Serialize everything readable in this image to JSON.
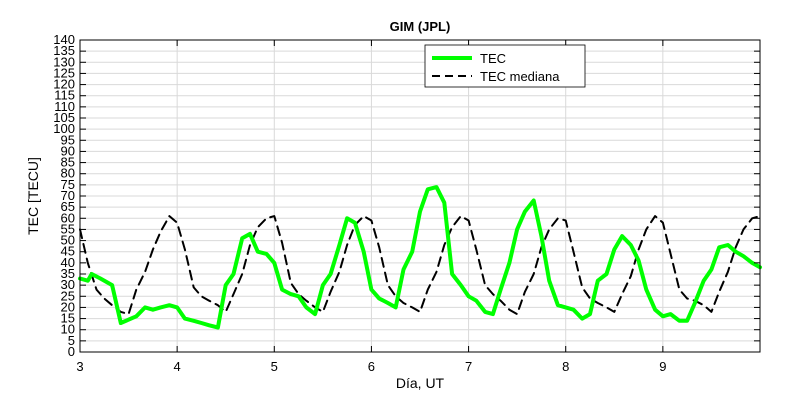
{
  "chart_data": {
    "type": "line",
    "title": "GIM (JPL)",
    "xlabel": "Día, UT",
    "ylabel": "TEC [TECU]",
    "xlim": [
      3,
      10
    ],
    "ylim": [
      0,
      140
    ],
    "xticks": [
      3,
      4,
      5,
      6,
      7,
      8,
      9
    ],
    "yticks": [
      0,
      5,
      10,
      15,
      20,
      25,
      30,
      35,
      40,
      45,
      50,
      55,
      60,
      65,
      70,
      75,
      80,
      85,
      90,
      95,
      100,
      105,
      110,
      115,
      120,
      125,
      130,
      135,
      140
    ],
    "grid": true,
    "legend_position": "top-right",
    "series": [
      {
        "name": "TEC",
        "color": "#00ff00",
        "style": "solid",
        "x": [
          3.0,
          3.08,
          3.12,
          3.21,
          3.33,
          3.42,
          3.58,
          3.67,
          3.75,
          3.83,
          3.92,
          4.0,
          4.08,
          4.17,
          4.25,
          4.33,
          4.42,
          4.5,
          4.58,
          4.67,
          4.75,
          4.83,
          4.92,
          5.0,
          5.08,
          5.17,
          5.25,
          5.33,
          5.42,
          5.5,
          5.58,
          5.67,
          5.75,
          5.83,
          5.92,
          6.0,
          6.08,
          6.17,
          6.25,
          6.33,
          6.42,
          6.5,
          6.58,
          6.67,
          6.75,
          6.83,
          6.92,
          7.0,
          7.08,
          7.17,
          7.25,
          7.33,
          7.42,
          7.5,
          7.58,
          7.67,
          7.75,
          7.83,
          7.92,
          8.0,
          8.08,
          8.17,
          8.25,
          8.33,
          8.42,
          8.5,
          8.58,
          8.67,
          8.75,
          8.83,
          8.92,
          9.0,
          9.08,
          9.17,
          9.25,
          9.33,
          9.42,
          9.5,
          9.58,
          9.67,
          9.75,
          9.83,
          9.92,
          10.0
        ],
        "values": [
          33,
          32,
          35,
          33,
          30,
          13,
          16,
          20,
          19,
          20,
          21,
          20,
          15,
          14,
          13,
          12,
          11,
          30,
          35,
          51,
          53,
          45,
          44,
          40,
          28,
          26,
          25,
          20,
          17,
          30,
          35,
          48,
          60,
          58,
          45,
          28,
          24,
          22,
          20,
          37,
          45,
          63,
          73,
          74,
          67,
          35,
          30,
          25,
          23,
          18,
          17,
          28,
          40,
          55,
          63,
          68,
          52,
          32,
          21,
          20,
          19,
          15,
          17,
          32,
          35,
          46,
          52,
          48,
          41,
          28,
          19,
          16,
          17,
          14,
          14,
          22,
          32,
          37,
          47,
          48,
          45,
          43,
          40,
          38
        ],
        "values_note": ""
      },
      {
        "name": "TEC mediana",
        "color": "#000000",
        "style": "dashed",
        "x": [
          3.0,
          3.08,
          3.17,
          3.25,
          3.33,
          3.42,
          3.5,
          3.58,
          3.67,
          3.75,
          3.83,
          3.92,
          4.0,
          4.08,
          4.17,
          4.25,
          4.33,
          4.42,
          4.5,
          4.58,
          4.67,
          4.75,
          4.83,
          4.92,
          5.0,
          5.08,
          5.17,
          5.25,
          5.33,
          5.42,
          5.5,
          5.58,
          5.67,
          5.75,
          5.83,
          5.92,
          6.0,
          6.08,
          6.17,
          6.25,
          6.33,
          6.42,
          6.5,
          6.58,
          6.67,
          6.75,
          6.83,
          6.92,
          7.0,
          7.08,
          7.17,
          7.25,
          7.33,
          7.42,
          7.5,
          7.58,
          7.67,
          7.75,
          7.83,
          7.92,
          8.0,
          8.08,
          8.17,
          8.25,
          8.33,
          8.42,
          8.5,
          8.58,
          8.67,
          8.75,
          8.83,
          8.92,
          9.0,
          9.08,
          9.17,
          9.25,
          9.33,
          9.42,
          9.5,
          9.58,
          9.67,
          9.75,
          9.83,
          9.92,
          10.0
        ],
        "values": [
          55,
          40,
          28,
          24,
          21,
          18,
          17,
          28,
          36,
          46,
          54,
          61,
          58,
          46,
          29,
          25,
          23,
          21,
          18,
          26,
          35,
          48,
          56,
          60,
          61,
          49,
          31,
          26,
          23,
          20,
          18,
          27,
          36,
          48,
          57,
          61,
          59,
          47,
          30,
          25,
          22,
          20,
          18,
          28,
          36,
          48,
          56,
          61,
          59,
          46,
          30,
          26,
          23,
          19,
          17,
          27,
          35,
          47,
          55,
          60,
          59,
          45,
          29,
          24,
          22,
          20,
          18,
          26,
          34,
          46,
          55,
          61,
          58,
          44,
          28,
          24,
          23,
          21,
          18,
          27,
          36,
          47,
          55,
          60,
          61
        ],
        "values_note": ""
      }
    ]
  }
}
